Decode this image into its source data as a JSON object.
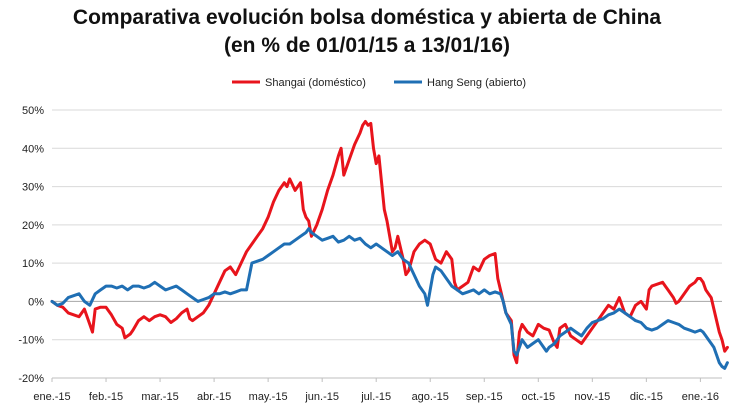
{
  "chart_data": {
    "type": "line",
    "title_line1": "Comparativa evolución bolsa doméstica y abierta de China",
    "title_line2": "(en % de 01/01/15 a 13/01/16)",
    "xlabel": "",
    "ylabel": "",
    "x_ticks": [
      "ene.-15",
      "feb.-15",
      "mar.-15",
      "abr.-15",
      "may.-15",
      "jun.-15",
      "jul.-15",
      "ago.-15",
      "sep.-15",
      "oct.-15",
      "nov.-15",
      "dic.-15",
      "ene.-16"
    ],
    "y_ticks": [
      "50%",
      "40%",
      "30%",
      "20%",
      "10%",
      "0%",
      "-10%",
      "-20%"
    ],
    "ylim": [
      -20,
      50
    ],
    "xlim": [
      0,
      12.4
    ],
    "grid": "horizontal",
    "legend_position": "top-center",
    "series": [
      {
        "name": "Shangai (doméstico)",
        "color": "#e8141c",
        "points": [
          [
            0.0,
            0
          ],
          [
            0.1,
            -1
          ],
          [
            0.2,
            -1.5
          ],
          [
            0.3,
            -3
          ],
          [
            0.4,
            -3.5
          ],
          [
            0.5,
            -4
          ],
          [
            0.6,
            -2
          ],
          [
            0.7,
            -6
          ],
          [
            0.75,
            -8
          ],
          [
            0.8,
            -2
          ],
          [
            0.9,
            -1.5
          ],
          [
            1.0,
            -1.5
          ],
          [
            1.1,
            -3.5
          ],
          [
            1.2,
            -6
          ],
          [
            1.3,
            -7
          ],
          [
            1.35,
            -9.5
          ],
          [
            1.45,
            -8.5
          ],
          [
            1.5,
            -7.5
          ],
          [
            1.6,
            -5
          ],
          [
            1.7,
            -4
          ],
          [
            1.8,
            -5
          ],
          [
            1.9,
            -4
          ],
          [
            2.0,
            -3.5
          ],
          [
            2.1,
            -4
          ],
          [
            2.2,
            -5.5
          ],
          [
            2.3,
            -4.5
          ],
          [
            2.4,
            -3
          ],
          [
            2.5,
            -2
          ],
          [
            2.55,
            -4.5
          ],
          [
            2.6,
            -5
          ],
          [
            2.7,
            -4
          ],
          [
            2.8,
            -3
          ],
          [
            2.9,
            -1
          ],
          [
            3.0,
            2
          ],
          [
            3.1,
            5
          ],
          [
            3.2,
            8
          ],
          [
            3.3,
            9
          ],
          [
            3.4,
            7
          ],
          [
            3.5,
            10
          ],
          [
            3.6,
            13
          ],
          [
            3.7,
            15
          ],
          [
            3.8,
            17
          ],
          [
            3.9,
            19
          ],
          [
            4.0,
            22
          ],
          [
            4.1,
            26
          ],
          [
            4.2,
            29
          ],
          [
            4.3,
            31
          ],
          [
            4.35,
            30
          ],
          [
            4.4,
            32
          ],
          [
            4.5,
            29
          ],
          [
            4.6,
            31
          ],
          [
            4.65,
            24
          ],
          [
            4.7,
            22
          ],
          [
            4.75,
            21
          ],
          [
            4.8,
            17
          ],
          [
            4.9,
            20
          ],
          [
            5.0,
            24
          ],
          [
            5.1,
            29
          ],
          [
            5.2,
            33
          ],
          [
            5.3,
            38
          ],
          [
            5.35,
            40
          ],
          [
            5.4,
            33
          ],
          [
            5.5,
            37
          ],
          [
            5.6,
            41
          ],
          [
            5.7,
            44
          ],
          [
            5.75,
            46
          ],
          [
            5.8,
            47
          ],
          [
            5.85,
            46
          ],
          [
            5.9,
            46.5
          ],
          [
            5.95,
            40
          ],
          [
            6.0,
            36
          ],
          [
            6.05,
            38
          ],
          [
            6.1,
            31
          ],
          [
            6.15,
            24
          ],
          [
            6.2,
            21
          ],
          [
            6.25,
            17
          ],
          [
            6.3,
            13
          ],
          [
            6.35,
            14
          ],
          [
            6.4,
            17
          ],
          [
            6.5,
            11
          ],
          [
            6.55,
            7
          ],
          [
            6.6,
            8
          ],
          [
            6.7,
            13
          ],
          [
            6.8,
            15
          ],
          [
            6.9,
            16
          ],
          [
            7.0,
            15
          ],
          [
            7.1,
            11
          ],
          [
            7.2,
            10
          ],
          [
            7.3,
            13
          ],
          [
            7.4,
            11
          ],
          [
            7.45,
            5
          ],
          [
            7.5,
            3
          ],
          [
            7.6,
            4
          ],
          [
            7.7,
            5
          ],
          [
            7.8,
            9
          ],
          [
            7.9,
            8
          ],
          [
            8.0,
            11
          ],
          [
            8.1,
            12
          ],
          [
            8.2,
            12.5
          ],
          [
            8.25,
            6
          ],
          [
            8.3,
            3
          ],
          [
            8.4,
            -3
          ],
          [
            8.5,
            -5
          ],
          [
            8.55,
            -14
          ],
          [
            8.6,
            -16
          ],
          [
            8.65,
            -8
          ],
          [
            8.7,
            -6
          ],
          [
            8.8,
            -8
          ],
          [
            8.9,
            -9
          ],
          [
            9.0,
            -6
          ],
          [
            9.1,
            -7
          ],
          [
            9.2,
            -7.5
          ],
          [
            9.3,
            -11
          ],
          [
            9.35,
            -12
          ],
          [
            9.4,
            -7
          ],
          [
            9.5,
            -6
          ],
          [
            9.6,
            -9
          ],
          [
            9.7,
            -10
          ],
          [
            9.8,
            -11
          ],
          [
            9.9,
            -9
          ],
          [
            10.0,
            -7
          ],
          [
            10.1,
            -5
          ],
          [
            10.2,
            -3
          ],
          [
            10.3,
            -1
          ],
          [
            10.4,
            -2
          ],
          [
            10.5,
            1
          ],
          [
            10.6,
            -3
          ],
          [
            10.7,
            -4
          ],
          [
            10.8,
            -1
          ],
          [
            10.9,
            0
          ],
          [
            11.0,
            -2
          ],
          [
            11.05,
            3
          ],
          [
            11.1,
            4
          ],
          [
            11.2,
            4.5
          ],
          [
            11.3,
            5
          ],
          [
            11.35,
            4
          ],
          [
            11.4,
            3
          ],
          [
            11.5,
            1
          ],
          [
            11.55,
            -0.5
          ],
          [
            11.6,
            0
          ],
          [
            11.7,
            2
          ],
          [
            11.8,
            4
          ],
          [
            11.9,
            5
          ],
          [
            11.95,
            6
          ],
          [
            12.0,
            6
          ],
          [
            12.05,
            5
          ],
          [
            12.1,
            3
          ],
          [
            12.15,
            2
          ],
          [
            12.2,
            1
          ],
          [
            12.25,
            -2
          ],
          [
            12.3,
            -5
          ],
          [
            12.35,
            -8
          ],
          [
            12.4,
            -10
          ],
          [
            12.45,
            -13
          ],
          [
            12.5,
            -12
          ]
        ]
      },
      {
        "name": "Hang Seng (abierto)",
        "color": "#1f6fb4",
        "points": [
          [
            0.0,
            0
          ],
          [
            0.1,
            -1
          ],
          [
            0.2,
            -0.5
          ],
          [
            0.3,
            1
          ],
          [
            0.4,
            1.5
          ],
          [
            0.5,
            2
          ],
          [
            0.6,
            0
          ],
          [
            0.7,
            -1
          ],
          [
            0.8,
            2
          ],
          [
            0.9,
            3
          ],
          [
            1.0,
            4
          ],
          [
            1.1,
            4
          ],
          [
            1.2,
            3.5
          ],
          [
            1.3,
            4
          ],
          [
            1.4,
            3
          ],
          [
            1.5,
            4
          ],
          [
            1.6,
            4
          ],
          [
            1.7,
            3.5
          ],
          [
            1.8,
            4
          ],
          [
            1.9,
            5
          ],
          [
            2.0,
            4
          ],
          [
            2.1,
            3
          ],
          [
            2.2,
            3.5
          ],
          [
            2.3,
            4
          ],
          [
            2.4,
            3
          ],
          [
            2.5,
            2
          ],
          [
            2.6,
            1
          ],
          [
            2.7,
            0
          ],
          [
            2.8,
            0.5
          ],
          [
            2.9,
            1
          ],
          [
            3.0,
            2
          ],
          [
            3.1,
            2
          ],
          [
            3.2,
            2.5
          ],
          [
            3.3,
            2
          ],
          [
            3.4,
            2.5
          ],
          [
            3.5,
            3
          ],
          [
            3.6,
            3
          ],
          [
            3.7,
            10
          ],
          [
            3.8,
            10.5
          ],
          [
            3.9,
            11
          ],
          [
            4.0,
            12
          ],
          [
            4.1,
            13
          ],
          [
            4.2,
            14
          ],
          [
            4.3,
            15
          ],
          [
            4.4,
            15
          ],
          [
            4.5,
            16
          ],
          [
            4.6,
            17
          ],
          [
            4.7,
            18
          ],
          [
            4.75,
            19
          ],
          [
            4.8,
            18
          ],
          [
            4.9,
            17
          ],
          [
            5.0,
            16
          ],
          [
            5.1,
            16.5
          ],
          [
            5.2,
            17
          ],
          [
            5.3,
            15.5
          ],
          [
            5.4,
            16
          ],
          [
            5.5,
            17
          ],
          [
            5.6,
            16
          ],
          [
            5.7,
            16.5
          ],
          [
            5.8,
            15
          ],
          [
            5.9,
            14
          ],
          [
            6.0,
            15
          ],
          [
            6.1,
            14
          ],
          [
            6.2,
            13
          ],
          [
            6.3,
            12
          ],
          [
            6.4,
            13
          ],
          [
            6.5,
            11
          ],
          [
            6.6,
            10
          ],
          [
            6.7,
            7
          ],
          [
            6.8,
            4
          ],
          [
            6.9,
            2
          ],
          [
            6.95,
            -1
          ],
          [
            7.0,
            3
          ],
          [
            7.05,
            7
          ],
          [
            7.1,
            9
          ],
          [
            7.2,
            8
          ],
          [
            7.3,
            6
          ],
          [
            7.4,
            4
          ],
          [
            7.5,
            3
          ],
          [
            7.6,
            2
          ],
          [
            7.7,
            2.5
          ],
          [
            7.8,
            3
          ],
          [
            7.9,
            2
          ],
          [
            8.0,
            3
          ],
          [
            8.1,
            2
          ],
          [
            8.2,
            2.5
          ],
          [
            8.3,
            2
          ],
          [
            8.35,
            0
          ],
          [
            8.4,
            -3
          ],
          [
            8.5,
            -6
          ],
          [
            8.55,
            -13
          ],
          [
            8.6,
            -14
          ],
          [
            8.65,
            -12
          ],
          [
            8.7,
            -10
          ],
          [
            8.8,
            -12
          ],
          [
            8.9,
            -11
          ],
          [
            9.0,
            -10
          ],
          [
            9.1,
            -12
          ],
          [
            9.15,
            -13
          ],
          [
            9.2,
            -12
          ],
          [
            9.3,
            -11
          ],
          [
            9.4,
            -9
          ],
          [
            9.5,
            -8
          ],
          [
            9.6,
            -7
          ],
          [
            9.7,
            -8
          ],
          [
            9.8,
            -9
          ],
          [
            9.9,
            -7
          ],
          [
            10.0,
            -5.5
          ],
          [
            10.1,
            -5
          ],
          [
            10.2,
            -4.5
          ],
          [
            10.3,
            -3.5
          ],
          [
            10.4,
            -3
          ],
          [
            10.5,
            -2
          ],
          [
            10.6,
            -3
          ],
          [
            10.7,
            -4
          ],
          [
            10.8,
            -5
          ],
          [
            10.9,
            -5.5
          ],
          [
            11.0,
            -7
          ],
          [
            11.1,
            -7.5
          ],
          [
            11.2,
            -7
          ],
          [
            11.3,
            -6
          ],
          [
            11.4,
            -5
          ],
          [
            11.5,
            -5.5
          ],
          [
            11.6,
            -6
          ],
          [
            11.7,
            -7
          ],
          [
            11.8,
            -7.5
          ],
          [
            11.9,
            -8
          ],
          [
            12.0,
            -7.5
          ],
          [
            12.05,
            -8
          ],
          [
            12.1,
            -9
          ],
          [
            12.15,
            -10
          ],
          [
            12.2,
            -11
          ],
          [
            12.25,
            -12
          ],
          [
            12.3,
            -14
          ],
          [
            12.35,
            -16
          ],
          [
            12.4,
            -17
          ],
          [
            12.45,
            -17.5
          ],
          [
            12.5,
            -16
          ]
        ]
      }
    ]
  }
}
